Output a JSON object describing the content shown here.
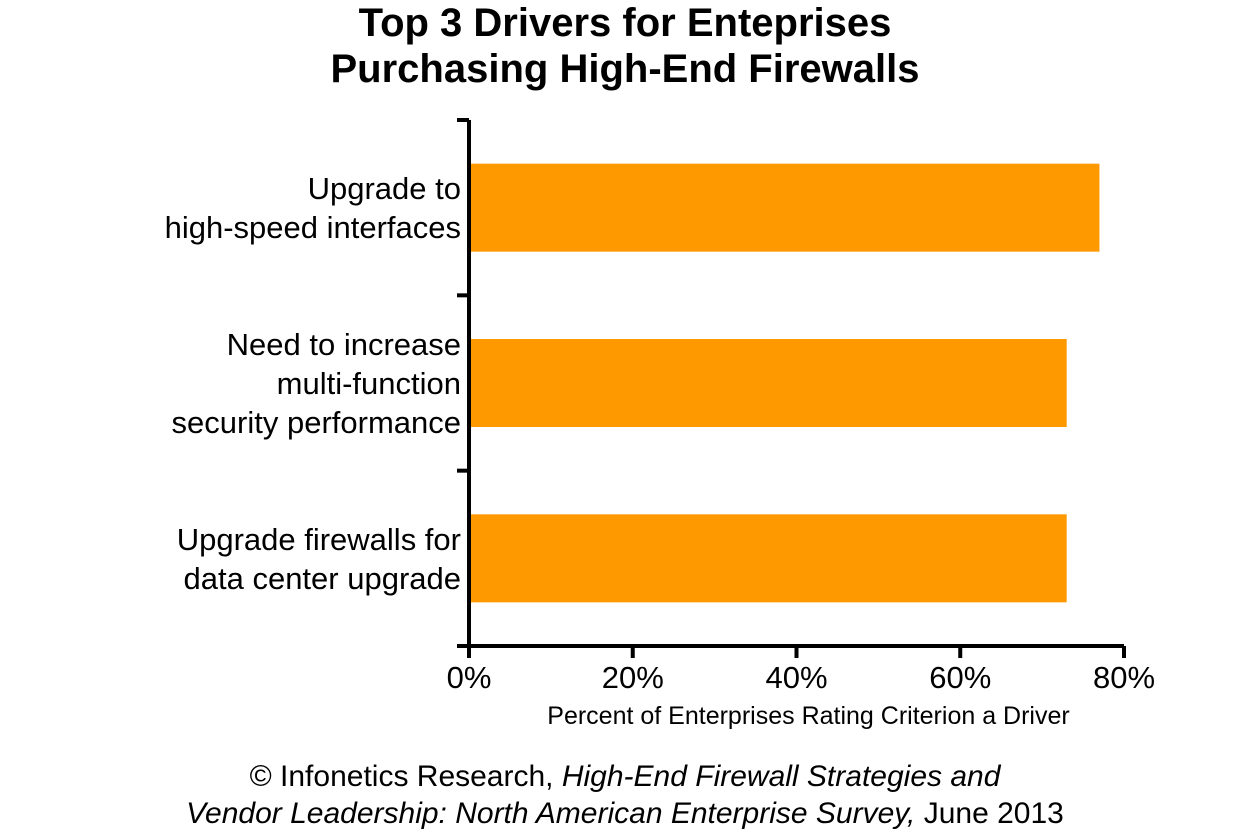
{
  "title": {
    "line1": "Top 3 Drivers for Enteprises",
    "line2": "Purchasing High-End Firewalls"
  },
  "source": {
    "line1_plain": "© Infonetics Research, ",
    "line1_italic": "High-End Firewall Strategies and",
    "line2_italic": "Vendor Leadership: North American Enterprise Survey,",
    "line2_plain": " June 2013"
  },
  "chart_data": {
    "type": "bar",
    "orientation": "horizontal",
    "title": "Top 3 Drivers for Enteprises Purchasing High-End Firewalls",
    "categories": [
      [
        "Upgrade to",
        "high-speed interfaces"
      ],
      [
        "Need to increase",
        "multi-function",
        "security performance"
      ],
      [
        "Upgrade firewalls for",
        "data center upgrade"
      ]
    ],
    "values": [
      77,
      73,
      73
    ],
    "xlabel": "Percent of Enterprises Rating Criterion a Driver",
    "ylabel": "",
    "xlim": [
      0,
      80
    ],
    "xticks": [
      0,
      20,
      40,
      60,
      80
    ],
    "tick_format": "percent",
    "bar_color": "#FF9900",
    "grid": false,
    "legend": "none"
  }
}
